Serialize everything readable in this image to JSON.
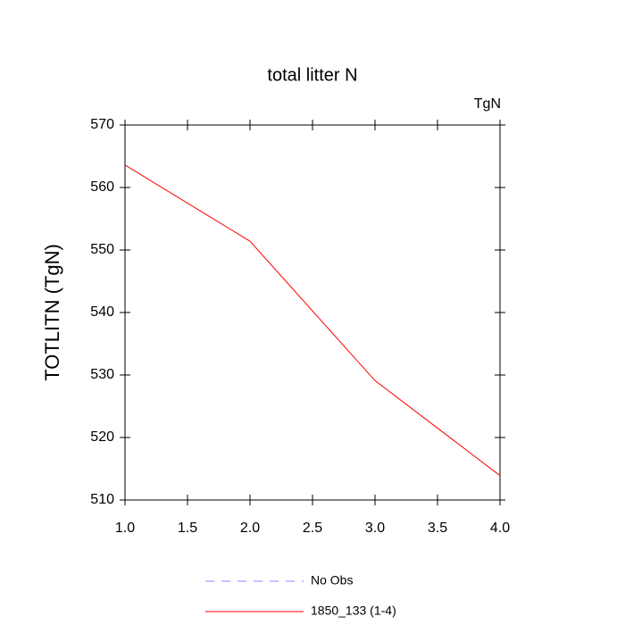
{
  "chart_data": {
    "type": "line",
    "title": "total litter N",
    "units": "TgN",
    "ylabel": "TOTLITN  (TgN)",
    "x": [
      1,
      2,
      3,
      4
    ],
    "series": [
      {
        "name": "No Obs",
        "color": "#8a8aff",
        "linestyle": "dashed",
        "values": [
          null,
          null,
          null,
          null
        ]
      },
      {
        "name": "1850_133 (1-4)",
        "color": "#ff0000",
        "linestyle": "solid",
        "values": [
          563.6,
          551.4,
          529.1,
          513.9
        ]
      }
    ],
    "xlim": [
      1,
      4
    ],
    "xticks": [
      {
        "value": 1,
        "label": "1.0"
      },
      {
        "value": 1.5,
        "label": "1.5"
      },
      {
        "value": 2,
        "label": "2.0"
      },
      {
        "value": 2.5,
        "label": "2.5"
      },
      {
        "value": 3,
        "label": "3.0"
      },
      {
        "value": 3.5,
        "label": "3.5"
      },
      {
        "value": 4,
        "label": "4.0"
      }
    ],
    "ylim": [
      510,
      570
    ],
    "yticks": [
      510,
      520,
      530,
      540,
      550,
      560,
      570
    ],
    "legend": "bottom"
  }
}
